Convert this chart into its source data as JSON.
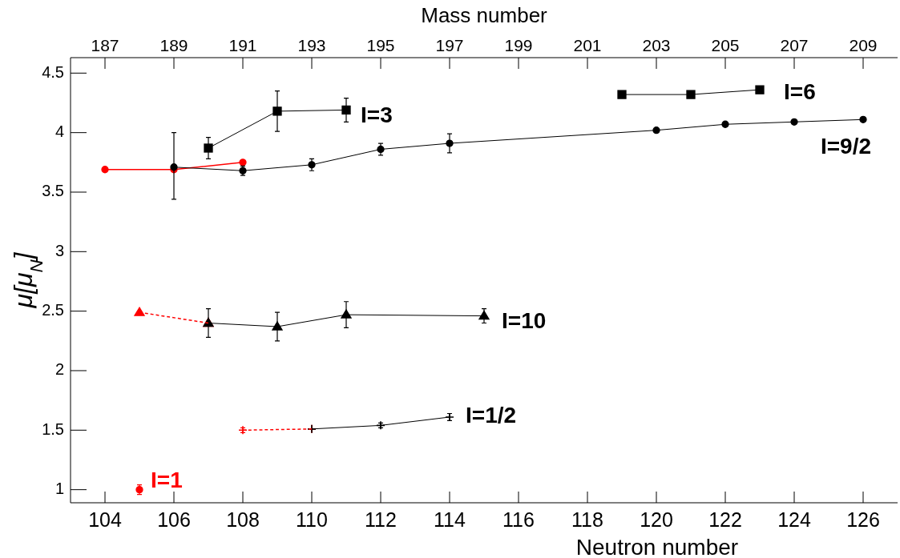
{
  "chart_data": {
    "type": "line",
    "xlabel": "Neutron number",
    "ylabel": "μ[μ$_{N}$]",
    "x2label": "Mass number",
    "xlim": [
      103,
      127
    ],
    "xticks": [
      104,
      106,
      108,
      110,
      112,
      114,
      116,
      118,
      120,
      122,
      124,
      126
    ],
    "x2lim": [
      186,
      210
    ],
    "x2ticks": [
      187,
      189,
      191,
      193,
      195,
      197,
      199,
      201,
      203,
      205,
      207,
      209
    ],
    "ylim": [
      0.89,
      4.63
    ],
    "yticks": [
      1,
      1.5,
      2,
      2.5,
      3,
      3.5,
      4,
      4.5
    ],
    "grid": false,
    "series": [
      {
        "color": "#ff0000",
        "marker": "circle",
        "line_style": "solid",
        "x": [
          104,
          106,
          108
        ],
        "values": [
          3.69,
          3.69,
          3.75
        ]
      },
      {
        "name": "I=9/2",
        "color": "#000000",
        "marker": "circle",
        "line_style": "solid",
        "x": [
          106,
          108,
          110,
          112,
          114,
          120,
          122,
          124,
          126
        ],
        "values": [
          3.71,
          3.68,
          3.73,
          3.86,
          3.91,
          4.02,
          4.07,
          4.09,
          4.11
        ],
        "errors": [
          [
            3.44,
            4.0
          ],
          0.04,
          0.05,
          0.05,
          0.08,
          null,
          null,
          null,
          null
        ]
      },
      {
        "name": "I=3",
        "color": "#000000",
        "marker": "square",
        "line_style": "solid",
        "x": [
          107,
          109,
          111
        ],
        "values": [
          3.87,
          4.18,
          4.19
        ],
        "errors": [
          0.09,
          0.17,
          0.1
        ]
      },
      {
        "name": "I=6",
        "color": "#000000",
        "marker": "square",
        "line_style": "solid",
        "x": [
          119,
          121,
          123
        ],
        "values": [
          4.32,
          4.32,
          4.36
        ]
      },
      {
        "color": "#ff0000",
        "marker": "triangle",
        "line_style": "dashed",
        "x": [
          105,
          107
        ],
        "values": [
          2.49,
          2.4
        ]
      },
      {
        "name": "I=10",
        "color": "#000000",
        "marker": "triangle",
        "line_style": "solid",
        "x": [
          107,
          109,
          111,
          115
        ],
        "values": [
          2.4,
          2.37,
          2.47,
          2.46
        ],
        "errors": [
          0.12,
          0.12,
          0.11,
          0.06
        ]
      },
      {
        "color": "#ff0000",
        "marker": "cross",
        "line_style": "dashed",
        "x": [
          108,
          110
        ],
        "values": [
          1.5,
          1.51
        ],
        "errors": [
          0.02,
          null
        ]
      },
      {
        "name": "I=1/2",
        "color": "#000000",
        "marker": "cross",
        "line_style": "solid",
        "x": [
          110,
          112,
          114
        ],
        "values": [
          1.51,
          1.54,
          1.61
        ],
        "errors": [
          null,
          0.02,
          0.03
        ]
      },
      {
        "name": "I=1",
        "color": "#ff0000",
        "marker": "circle",
        "line_style": "none",
        "x": [
          105
        ],
        "values": [
          1.0
        ],
        "errors": [
          0.04
        ]
      }
    ]
  }
}
